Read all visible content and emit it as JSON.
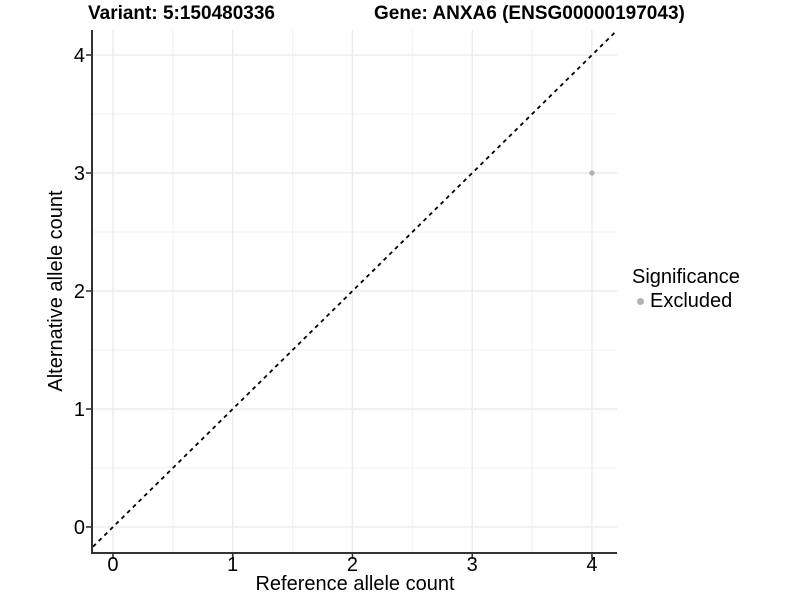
{
  "chart_data": {
    "type": "scatter",
    "title_left": "Variant: 5:150480336",
    "title_right": "Gene: ANXA6 (ENSG00000197043)",
    "xlabel": "Reference allele count",
    "ylabel": "Alternative allele count",
    "x_ticks": [
      0,
      1,
      2,
      3,
      4
    ],
    "y_ticks": [
      0,
      1,
      2,
      3,
      4
    ],
    "x_minor_ticks": [
      0.5,
      1.5,
      2.5,
      3.5
    ],
    "y_minor_ticks": [
      0.5,
      1.5,
      2.5,
      3.5
    ],
    "xlim": [
      -0.167,
      4.209
    ],
    "ylim": [
      -0.212,
      4.212
    ],
    "grid": "major+minor",
    "identity_line": {
      "style": "dashed",
      "slope": 1,
      "intercept": 0,
      "color": "#000000"
    },
    "series": [
      {
        "name": "Excluded",
        "color": "#b3b3b3",
        "points": [
          {
            "x": 4,
            "y": 3
          }
        ]
      }
    ],
    "legend": {
      "title": "Significance",
      "position": "right",
      "items": [
        {
          "label": "Excluded",
          "color": "#b3b3b3"
        }
      ]
    },
    "colors": {
      "axis_line": "#333333",
      "grid_major": "#ebebeb",
      "grid_minor": "#f3f3f3",
      "text": "#000000",
      "background": "#ffffff"
    }
  }
}
